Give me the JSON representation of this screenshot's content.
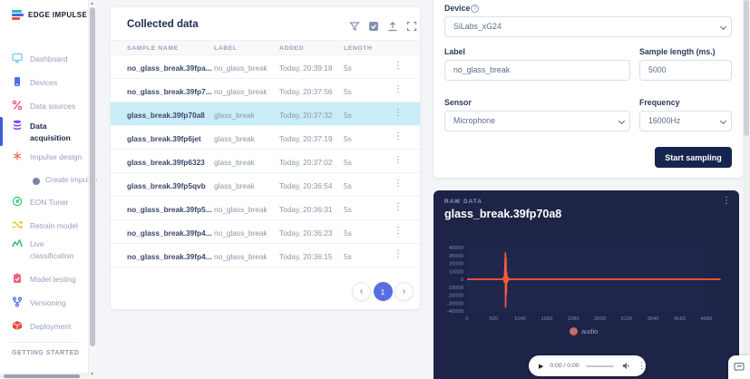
{
  "brand": {
    "logo_text": "EDGE IMPULSE"
  },
  "sidebar": {
    "items": [
      {
        "label": "Dashboard",
        "icon": "dashboard-icon",
        "color": "#67c6ef",
        "active": false,
        "sub": false
      },
      {
        "label": "Devices",
        "icon": "devices-icon",
        "color": "#4c71f0",
        "active": false,
        "sub": false
      },
      {
        "label": "Data sources",
        "icon": "data-sources-icon",
        "color": "#f4516c",
        "active": false,
        "sub": false
      },
      {
        "label": "Data acquisition",
        "icon": "data-acquisition-icon",
        "color": "#7a3ff2",
        "active": true,
        "sub": false
      },
      {
        "label": "Impulse design",
        "icon": "impulse-design-icon",
        "color": "#ff5a4e",
        "active": false,
        "sub": false
      },
      {
        "label": "Create impulse",
        "icon": "dot-icon",
        "color": "#7884a5",
        "active": false,
        "sub": true
      },
      {
        "label": "EON Tuner",
        "icon": "eon-tuner-icon",
        "color": "#2ecc71",
        "active": false,
        "sub": false
      },
      {
        "label": "Retrain model",
        "icon": "retrain-icon",
        "color": "#f2c618",
        "active": false,
        "sub": false
      },
      {
        "label": "Live classification",
        "icon": "live-classification-icon",
        "color": "#27ae60",
        "active": false,
        "sub": false
      },
      {
        "label": "Model testing",
        "icon": "model-testing-icon",
        "color": "#f0647e",
        "active": false,
        "sub": false
      },
      {
        "label": "Versioning",
        "icon": "versioning-icon",
        "color": "#4c6fff",
        "active": false,
        "sub": false
      },
      {
        "label": "Deployment",
        "icon": "deployment-icon",
        "color": "#e74c3c",
        "active": false,
        "sub": false
      }
    ],
    "section_heading": "GETTING STARTED"
  },
  "collected": {
    "title": "Collected data",
    "toolbar_icons": [
      "filter-icon",
      "select-checkbox-icon",
      "upload-icon",
      "expand-icon"
    ],
    "columns": [
      "SAMPLE NAME",
      "LABEL",
      "ADDED",
      "LENGTH"
    ],
    "selected_row_index": 2,
    "rows": [
      {
        "name": "no_glass_break.39fpa...",
        "label": "no_glass_break",
        "added": "Today, 20:39:18",
        "length": "5s"
      },
      {
        "name": "no_glass_break.39fp7...",
        "label": "no_glass_break",
        "added": "Today, 20:37:56",
        "length": "5s"
      },
      {
        "name": "glass_break.39fp70a8",
        "label": "glass_break",
        "added": "Today, 20:37:32",
        "length": "5s"
      },
      {
        "name": "glass_break.39fp6jet",
        "label": "glass_break",
        "added": "Today, 20:37:19",
        "length": "5s"
      },
      {
        "name": "glass_break.39fp6323",
        "label": "glass_break",
        "added": "Today, 20:37:02",
        "length": "5s"
      },
      {
        "name": "glass_break.39fp5qvb",
        "label": "glass_break",
        "added": "Today, 20:36:54",
        "length": "5s"
      },
      {
        "name": "no_glass_break.39fp5...",
        "label": "no_glass_break",
        "added": "Today, 20:36:31",
        "length": "5s"
      },
      {
        "name": "no_glass_break.39fp4...",
        "label": "no_glass_break",
        "added": "Today, 20:36:23",
        "length": "5s"
      },
      {
        "name": "no_glass_break.39fp4...",
        "label": "no_glass_break",
        "added": "Today, 20:36:15",
        "length": "5s"
      }
    ],
    "row_kebab": "⋮",
    "pagination": {
      "prev": "‹",
      "page": "1",
      "next": "›"
    }
  },
  "form": {
    "device_label": "Device",
    "device_help": "?",
    "device_value": "SiLabs_xG24",
    "label_label": "Label",
    "label_value": "no_glass_break",
    "sample_length_label": "Sample length (ms.)",
    "sample_length_value": "5000",
    "sensor_label": "Sensor",
    "sensor_value": "Microphone",
    "frequency_label": "Frequency",
    "frequency_value": "16000Hz",
    "start_button": "Start sampling"
  },
  "raw": {
    "header": "RAW DATA",
    "title": "glass_break.39fp70a8",
    "kebab": "⋮"
  },
  "chart_data": {
    "type": "line",
    "title": "glass_break.39fp70a8",
    "series": [
      {
        "name": "audio",
        "color": "#f75b3a"
      }
    ],
    "legend": "audio",
    "legend_position": "bottom",
    "grid": false,
    "xlim": [
      0,
      4960
    ],
    "ylim": [
      -40000,
      40000
    ],
    "x_ticks": [
      0,
      520,
      1040,
      1560,
      2080,
      2600,
      3120,
      3640,
      4160,
      4680
    ],
    "y_ticks": [
      40000,
      30000,
      20000,
      10000,
      0,
      -10000,
      -20000,
      -30000,
      -40000
    ],
    "waveform": [
      [
        0,
        0
      ],
      [
        700,
        0
      ],
      [
        718,
        2500
      ],
      [
        730,
        -3500
      ],
      [
        742,
        15000
      ],
      [
        750,
        33000
      ],
      [
        755,
        -35000
      ],
      [
        761,
        27000
      ],
      [
        767,
        -19000
      ],
      [
        774,
        9000
      ],
      [
        784,
        -4500
      ],
      [
        798,
        2000
      ],
      [
        815,
        -800
      ],
      [
        830,
        0
      ],
      [
        4960,
        0
      ]
    ]
  },
  "player": {
    "play": "▶",
    "time": "0:00 / 0:00",
    "kebab": "⋮"
  }
}
